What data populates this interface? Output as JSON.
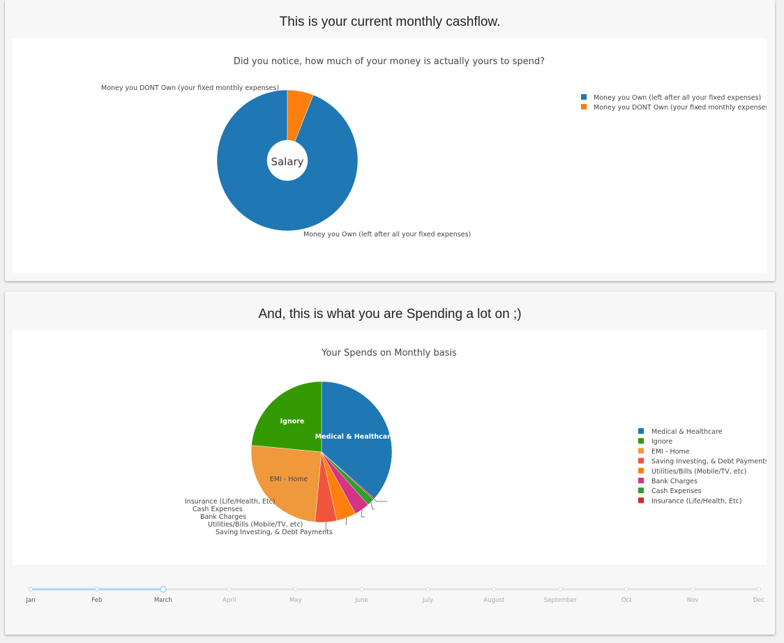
{
  "section1": {
    "heading": "This is your current monthly cashflow.",
    "chart": {
      "title": "Did you notice, how much of your money is actually yours to spend?",
      "center_label": "Salary"
    }
  },
  "section2": {
    "heading": "And, this is what you are Spending a lot on ;)",
    "chart": {
      "title": "Your Spends on Monthly basis"
    }
  },
  "timeline": {
    "months": [
      "Jan",
      "Feb",
      "March",
      "April",
      "May",
      "June",
      "July",
      "August",
      "September",
      "Oct",
      "Nov",
      "Dec"
    ],
    "selected_index": 2
  },
  "colors": {
    "blue": "#1f77b4",
    "orange": "#ff7f0e",
    "green": "#339900",
    "light_orange": "#f0993c",
    "red_orange": "#ef553b",
    "pink": "#d63384",
    "mid_green": "#2ca02c",
    "red": "#d62728",
    "timeline_active": "#a8dbf2",
    "timeline_inactive": "#e3e3e3"
  },
  "chart_data": [
    {
      "type": "pie",
      "hole": true,
      "title": "Did you notice, how much of your money is actually yours to spend?",
      "labels": [
        "Money you Own (left after all your fixed expenses)",
        "Money you DONT Own (your fixed monthly expenses)"
      ],
      "values": [
        94,
        6
      ],
      "colors": [
        "#1f77b4",
        "#ff7f0e"
      ],
      "legend_position": "top-right"
    },
    {
      "type": "pie",
      "title": "Your Spends on Monthly basis",
      "labels": [
        "Medical & Healthcare",
        "Ignore",
        "EMI - Home",
        "Saving Investing, & Debt Payments",
        "Utilities/Bills (Mobile/TV, etc)",
        "Bank Charges",
        "Cash Expenses",
        "Insurance (Life/Health, Etc)"
      ],
      "values": [
        36.5,
        23.5,
        25,
        5,
        4.5,
        3.5,
        1.7,
        0.3
      ],
      "slice_order": [
        "Medical & Healthcare",
        "Insurance (Life/Health, Etc)",
        "Cash Expenses",
        "Bank Charges",
        "Utilities/Bills (Mobile/TV, etc)",
        "Saving Investing, & Debt Payments",
        "EMI - Home",
        "Ignore"
      ],
      "colors": [
        "#1f77b4",
        "#339900",
        "#f0993c",
        "#ef553b",
        "#ff7f0e",
        "#d63384",
        "#2ca02c",
        "#d62728"
      ],
      "inside_labels": [
        "Medical & Healthcare",
        "Ignore",
        "EMI - Home"
      ],
      "legend_position": "right"
    }
  ]
}
